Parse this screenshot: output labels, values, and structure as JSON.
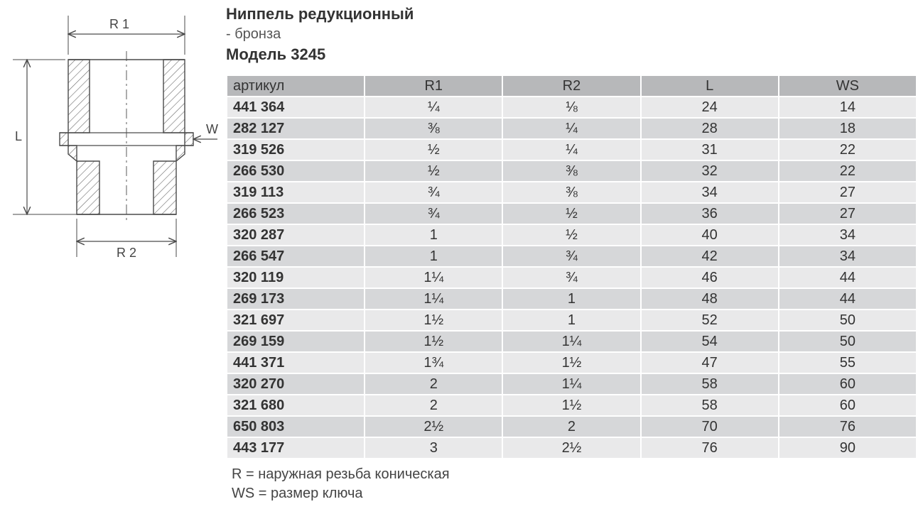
{
  "header": {
    "title": "Ниппель редукционный",
    "subtitle": "-  бронза",
    "model_prefix": "Модель ",
    "model_number": "3245"
  },
  "diagram": {
    "labels": {
      "R1": "R 1",
      "R2": "R 2",
      "L": "L",
      "WS": "WS"
    },
    "stroke_color": "#4a4a4a",
    "hatch_color": "#6a6a6a",
    "fill_color": "#ffffff"
  },
  "table": {
    "columns": [
      "артикул",
      "R1",
      "R2",
      "L",
      "WS"
    ],
    "col_widths": [
      "20%",
      "20%",
      "20%",
      "20%",
      "20%"
    ],
    "header_bg": "#b7b8ba",
    "row_bg_odd": "#e9e9ea",
    "row_bg_even": "#d6d7d9",
    "border_color": "#ffffff",
    "font_size": 20,
    "rows": [
      {
        "art": "441 364",
        "r1": "¼",
        "r2": "⅛",
        "l": "24",
        "ws": "14"
      },
      {
        "art": "282 127",
        "r1": "⅜",
        "r2": "¼",
        "l": "28",
        "ws": "18"
      },
      {
        "art": "319 526",
        "r1": "½",
        "r2": "¼",
        "l": "31",
        "ws": "22"
      },
      {
        "art": "266 530",
        "r1": "½",
        "r2": "⅜",
        "l": "32",
        "ws": "22"
      },
      {
        "art": "319 113",
        "r1": "¾",
        "r2": "⅜",
        "l": "34",
        "ws": "27"
      },
      {
        "art": "266 523",
        "r1": "¾",
        "r2": "½",
        "l": "36",
        "ws": "27"
      },
      {
        "art": "320 287",
        "r1": "1",
        "r2": "½",
        "l": "40",
        "ws": "34"
      },
      {
        "art": "266 547",
        "r1": "1",
        "r2": "¾",
        "l": "42",
        "ws": "34"
      },
      {
        "art": "320 119",
        "r1": "1¼",
        "r2": "¾",
        "l": "46",
        "ws": "44"
      },
      {
        "art": "269 173",
        "r1": "1¼",
        "r2": "1",
        "l": "48",
        "ws": "44"
      },
      {
        "art": "321 697",
        "r1": "1½",
        "r2": "1",
        "l": "52",
        "ws": "50"
      },
      {
        "art": "269 159",
        "r1": "1½",
        "r2": "1¼",
        "l": "54",
        "ws": "50"
      },
      {
        "art": "441 371",
        "r1": "1¾",
        "r2": "1½",
        "l": "47",
        "ws": "55"
      },
      {
        "art": "320 270",
        "r1": "2",
        "r2": "1¼",
        "l": "58",
        "ws": "60"
      },
      {
        "art": "321 680",
        "r1": "2",
        "r2": "1½",
        "l": "58",
        "ws": "60"
      },
      {
        "art": "650 803",
        "r1": "2½",
        "r2": "2",
        "l": "70",
        "ws": "76"
      },
      {
        "art": "443 177",
        "r1": "3",
        "r2": "2½",
        "l": "76",
        "ws": "90"
      }
    ]
  },
  "legend": {
    "line1": "R = наружная резьба коническая",
    "line2": "WS = размер ключа"
  }
}
